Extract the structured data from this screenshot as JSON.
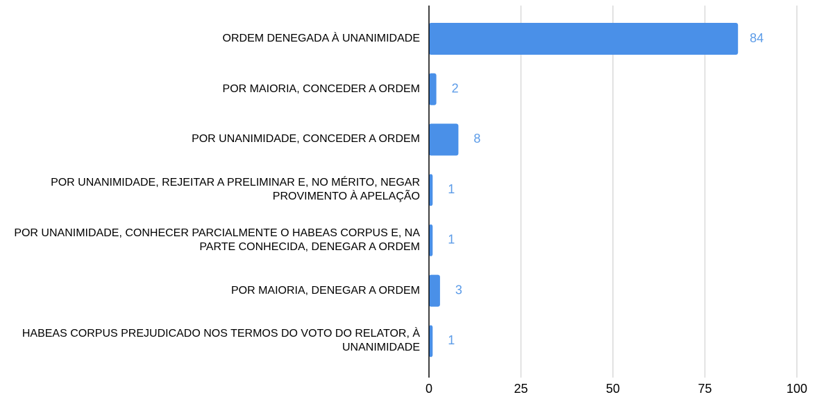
{
  "chart_data": {
    "type": "barh",
    "categories": [
      "ORDEM DENEGADA À UNANIMIDADE",
      "POR MAIORIA, CONCEDER A ORDEM",
      "POR UNANIMIDADE, CONCEDER A ORDEM",
      "POR UNANIMIDADE, REJEITAR A PRELIMINAR E, NO MÉRITO, NEGAR PROVIMENTO À APELAÇÃO",
      "POR UNANIMIDADE, CONHECER PARCIALMENTE O HABEAS CORPUS E, NA PARTE CONHECIDA, DENEGAR A ORDEM",
      "POR MAIORIA, DENEGAR A ORDEM",
      "HABEAS CORPUS PREJUDICADO NOS TERMOS DO VOTO DO RELATOR, À UNANIMIDADE"
    ],
    "values": [
      84,
      2,
      8,
      1,
      1,
      3,
      1
    ],
    "color": "#4a90e8",
    "label_color": "#5b9be8",
    "xlim": [
      0,
      100
    ],
    "xticks": [
      0,
      25,
      50,
      75,
      100
    ],
    "grid": true
  }
}
